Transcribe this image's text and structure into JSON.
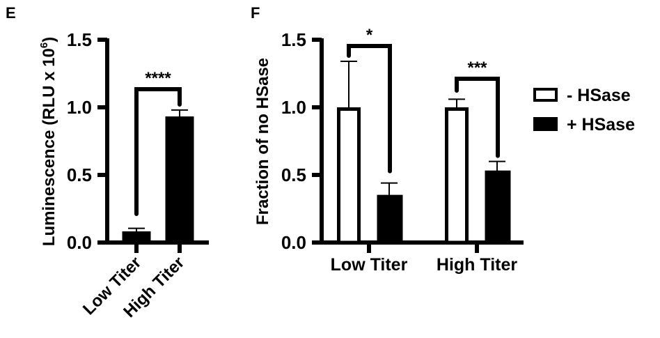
{
  "panel_labels": [
    "E",
    "F"
  ],
  "chart_data": [
    {
      "type": "bar",
      "panel": "E",
      "title": "",
      "xlabel": "",
      "ylabel": "Luminescence (RLU x 10",
      "ylabel_superscript": "6",
      "ylabel_close": ")",
      "ylim": [
        0,
        1.5
      ],
      "yticks": [
        "0.0",
        "0.5",
        "1.0",
        "1.5"
      ],
      "ytick_values": [
        0,
        0.5,
        1.0,
        1.5
      ],
      "categories": [
        "Low Titer",
        "High Titer"
      ],
      "values": [
        0.08,
        0.93
      ],
      "errors": [
        0.025,
        0.05
      ],
      "fill": "#000000",
      "significance": [
        {
          "from": 0,
          "to": 1,
          "label": "****"
        }
      ]
    },
    {
      "type": "bar",
      "panel": "F",
      "title": "",
      "xlabel": "",
      "ylabel": "Fraction of no HSase",
      "ylim": [
        0,
        1.5
      ],
      "yticks": [
        "0.0",
        "0.5",
        "1.0",
        "1.5"
      ],
      "ytick_values": [
        0,
        0.5,
        1.0,
        1.5
      ],
      "categories": [
        "Low Titer",
        "High Titer"
      ],
      "series": [
        {
          "name": "- HSase",
          "values": [
            1.0,
            1.0
          ],
          "errors": [
            0.34,
            0.06
          ],
          "fill": "#ffffff"
        },
        {
          "name": "+ HSase",
          "values": [
            0.35,
            0.53
          ],
          "errors": [
            0.09,
            0.07
          ],
          "fill": "#000000"
        }
      ],
      "legend_position": "right",
      "significance": [
        {
          "category": 0,
          "label": "*"
        },
        {
          "category": 1,
          "label": "***"
        }
      ]
    }
  ]
}
